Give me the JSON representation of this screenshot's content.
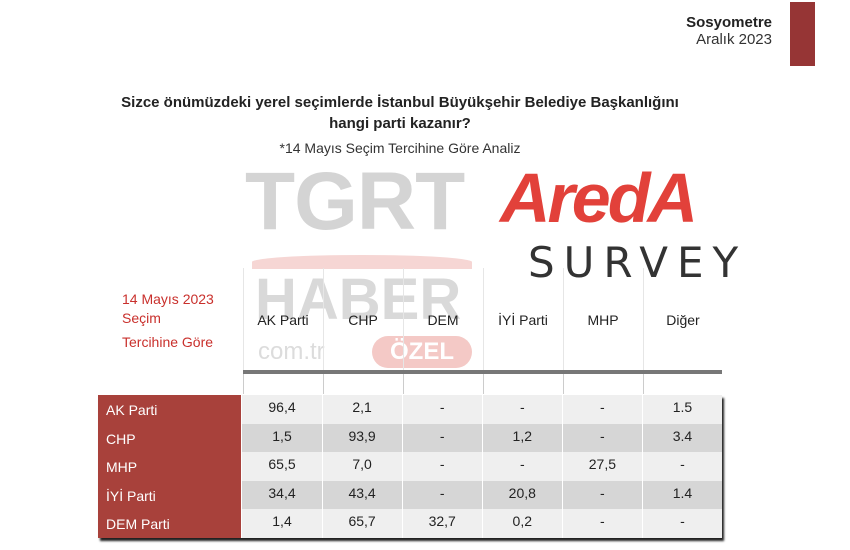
{
  "header": {
    "brand": "Sosyometre",
    "date": "Aralık 2023",
    "accent": "#963535"
  },
  "question": "Sizce önümüzdeki yerel seçimlerde İstanbul Büyükşehir Belediye Başkanlığını hangi parti kazanır?",
  "note": "*14 Mayıs Seçim Tercihine Göre Analiz",
  "watermark": {
    "tgrt": "TGRT",
    "haber": "HABER",
    "comtr": "com.tr",
    "ozel": "ÖZEL"
  },
  "logo": {
    "areda": "AredA",
    "survey": "SURVEY"
  },
  "table": {
    "row_header": [
      "14 Mayıs 2023",
      "Seçim",
      "Tercihine Göre"
    ],
    "columns": [
      "AK Parti",
      "CHP",
      "DEM",
      "İYİ Parti",
      "MHP",
      "Diğer"
    ],
    "rows": [
      {
        "label": "AK Parti",
        "values": [
          "96,4",
          "2,1",
          "-",
          "-",
          "-",
          "1.5"
        ]
      },
      {
        "label": "CHP",
        "values": [
          "1,5",
          "93,9",
          "-",
          "1,2",
          "-",
          "3.4"
        ]
      },
      {
        "label": "MHP",
        "values": [
          "65,5",
          "7,0",
          "-",
          "-",
          "27,5",
          "-"
        ]
      },
      {
        "label": "İYİ Parti",
        "values": [
          "34,4",
          "43,4",
          "-",
          "20,8",
          "-",
          "1.4"
        ]
      },
      {
        "label": "DEM  Parti",
        "values": [
          "1,4",
          "65,7",
          "32,7",
          "0,2",
          "-",
          "-"
        ]
      }
    ],
    "label_color": "#a8413b"
  }
}
